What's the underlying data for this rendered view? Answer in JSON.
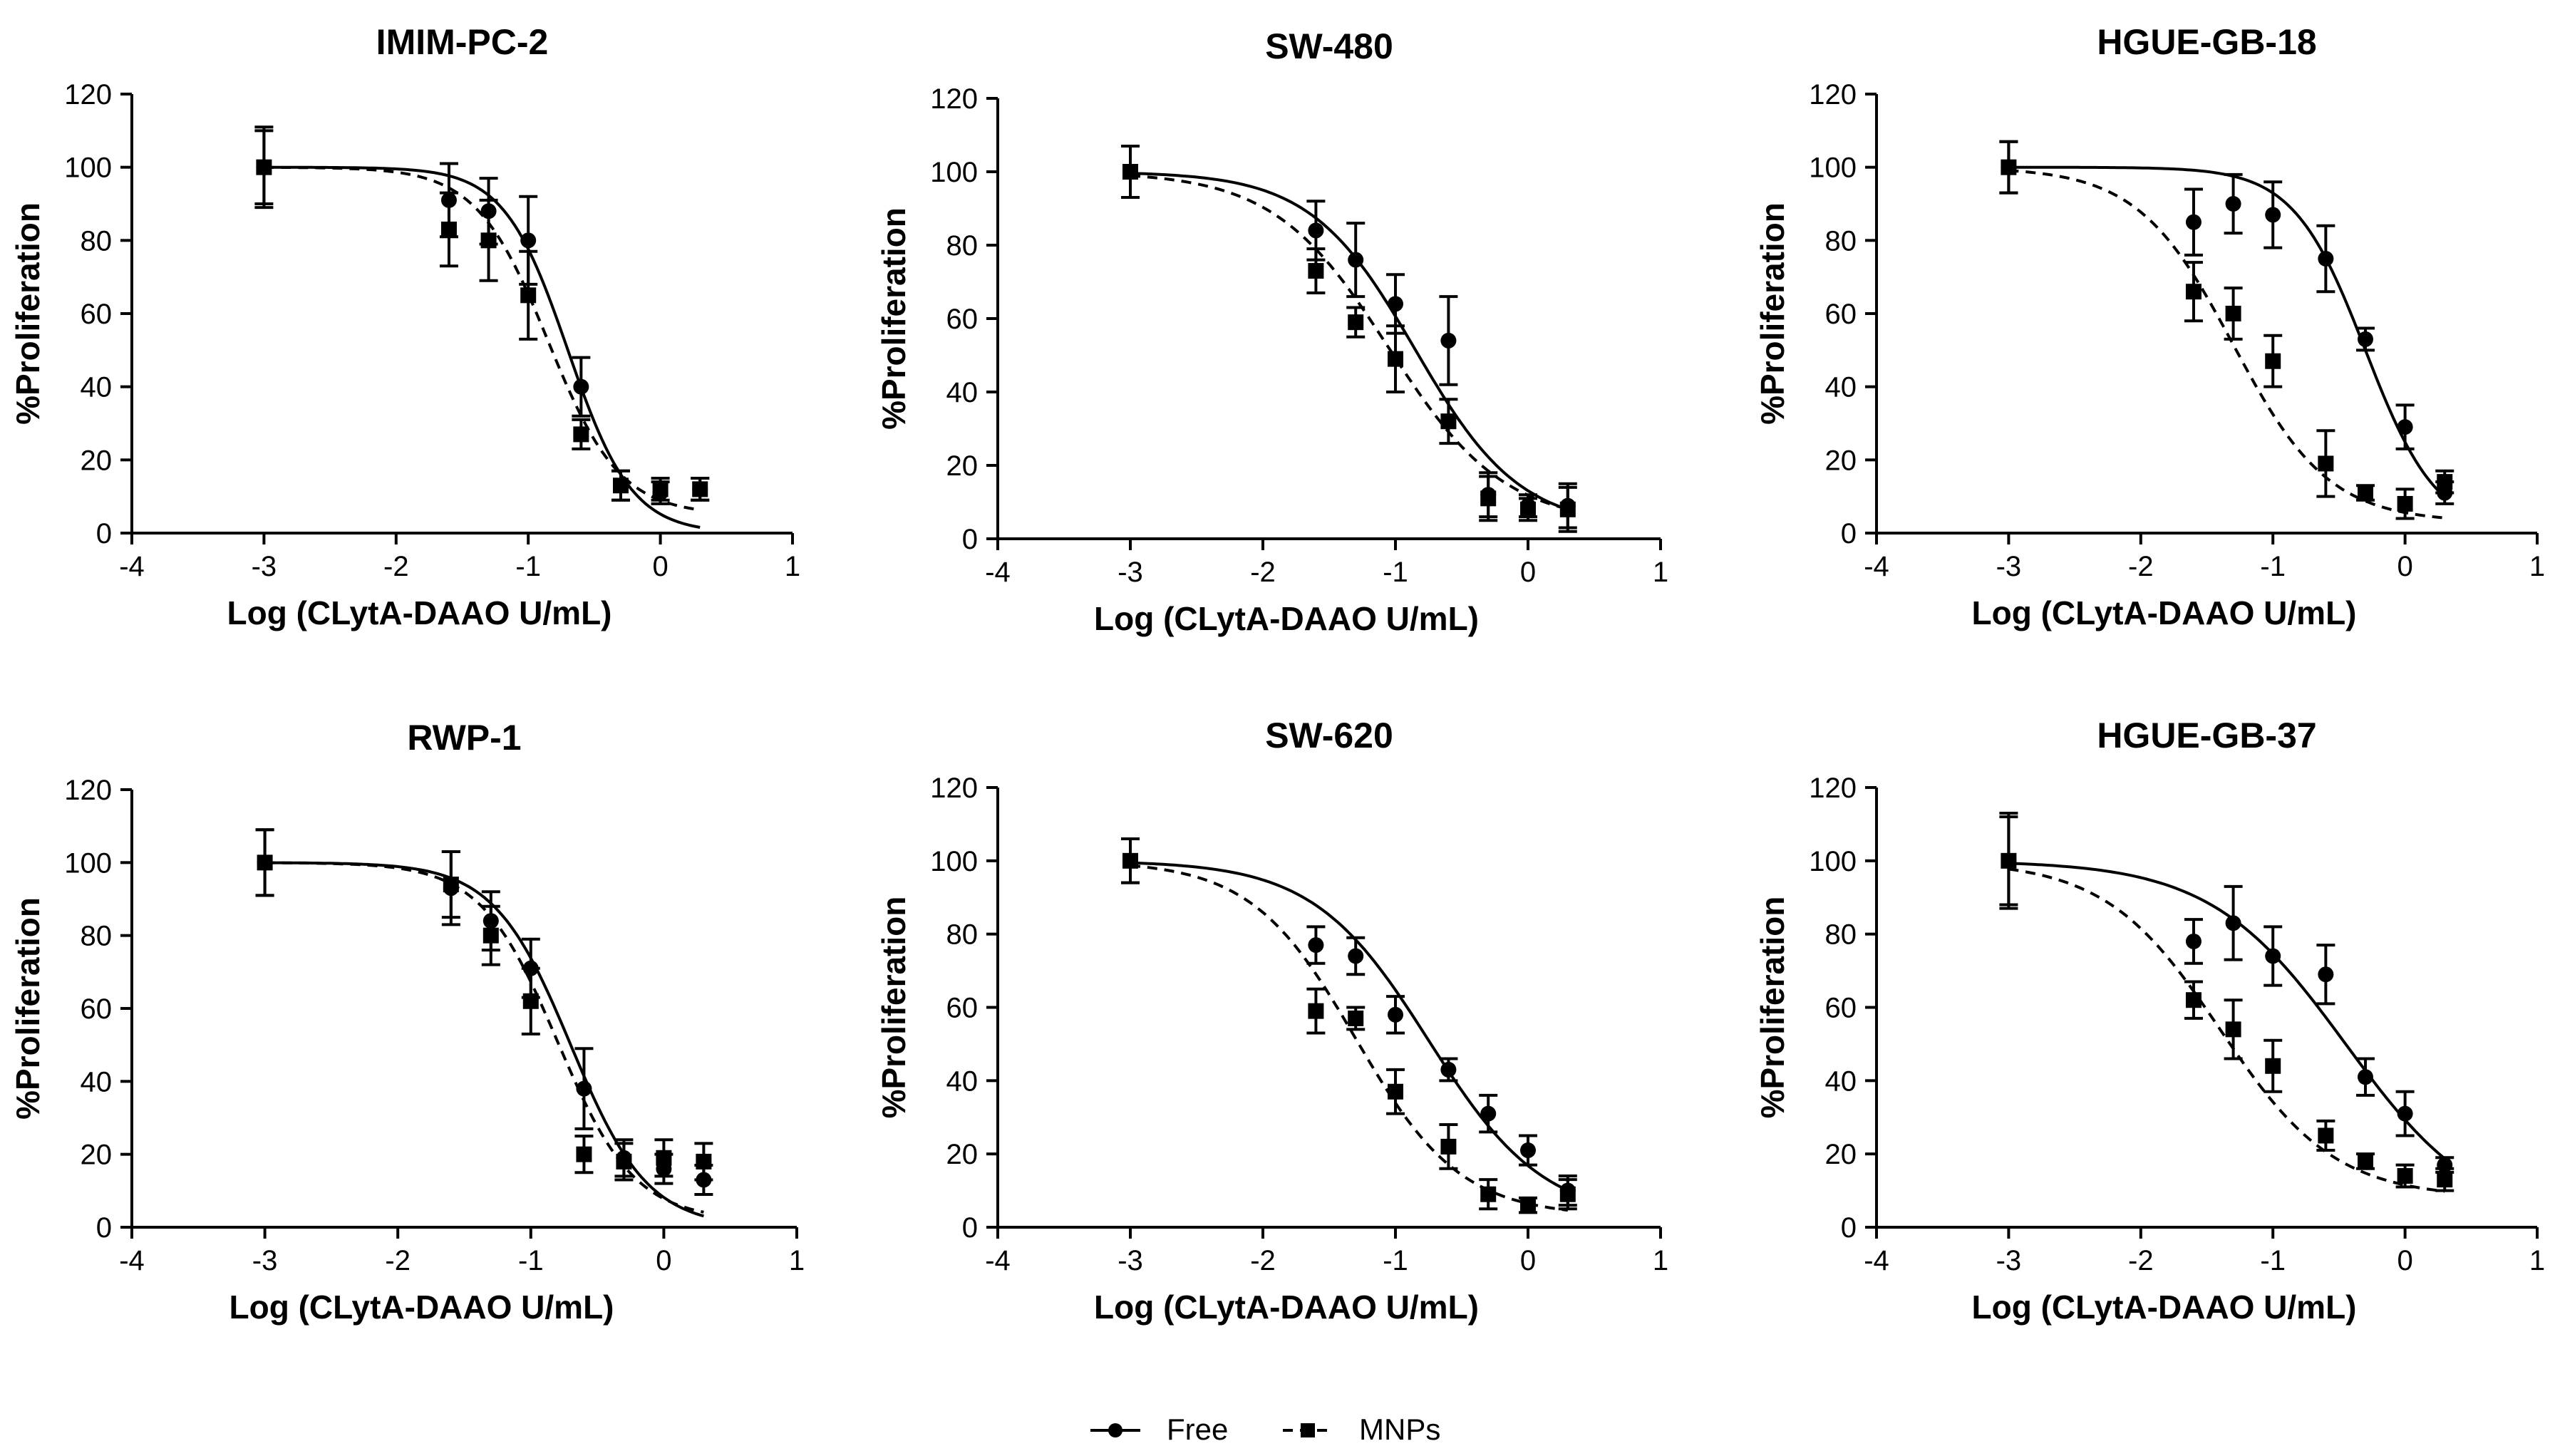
{
  "legend": {
    "free_label": "Free",
    "mnps_label": "MNPs"
  },
  "chart_data": [
    {
      "type": "scatter",
      "title": "IMIM-PC-2",
      "xlabel": "Log (CLytA-DAAO U/mL)",
      "ylabel": "%Proliferation",
      "xlim": [
        -4,
        1
      ],
      "ylim": [
        0,
        120
      ],
      "xticks": [
        -4,
        -3,
        -2,
        -1,
        0,
        1
      ],
      "yticks": [
        0,
        20,
        40,
        60,
        80,
        100,
        120
      ],
      "series": [
        {
          "name": "Free",
          "marker": "circle",
          "line": "solid",
          "x": [
            -3,
            -1.6,
            -1.3,
            -1.0,
            -0.6,
            -0.3,
            0.0,
            0.3
          ],
          "y": [
            100,
            91,
            88,
            80,
            40,
            13,
            11,
            12
          ],
          "err": [
            10,
            10,
            9,
            12,
            8,
            4,
            3,
            3
          ],
          "fit": {
            "top": 100,
            "bottom": 0,
            "logec50": -0.7,
            "hill": 1.8
          }
        },
        {
          "name": "MNPs",
          "marker": "square",
          "line": "dashed",
          "x": [
            -3,
            -1.6,
            -1.3,
            -1.0,
            -0.6,
            -0.3,
            0.0,
            0.3
          ],
          "y": [
            100,
            83,
            80,
            65,
            27,
            13,
            12,
            12
          ],
          "err": [
            11,
            10,
            11,
            12,
            4,
            4,
            3,
            3
          ],
          "fit": {
            "top": 100,
            "bottom": 5,
            "logec50": -0.85,
            "hill": 1.6
          }
        }
      ]
    },
    {
      "type": "scatter",
      "title": "SW-480",
      "xlabel": "Log (CLytA-DAAO U/mL)",
      "ylabel": "%Proliferation",
      "xlim": [
        -4,
        1
      ],
      "ylim": [
        0,
        120
      ],
      "xticks": [
        -4,
        -3,
        -2,
        -1,
        0,
        1
      ],
      "yticks": [
        0,
        20,
        40,
        60,
        80,
        100,
        120
      ],
      "series": [
        {
          "name": "Free",
          "marker": "circle",
          "line": "solid",
          "x": [
            -3,
            -1.6,
            -1.3,
            -1.0,
            -0.6,
            -0.3,
            0.0,
            0.3
          ],
          "y": [
            100,
            84,
            76,
            64,
            54,
            12,
            9,
            9
          ],
          "err": [
            7,
            8,
            10,
            8,
            12,
            6,
            3,
            6
          ],
          "fit": {
            "top": 100,
            "bottom": 3,
            "logec50": -0.85,
            "hill": 1.1
          }
        },
        {
          "name": "MNPs",
          "marker": "square",
          "line": "dashed",
          "x": [
            -3,
            -1.6,
            -1.3,
            -1.0,
            -0.6,
            -0.3,
            0.0,
            0.3
          ],
          "y": [
            100,
            73,
            59,
            49,
            32,
            11,
            8,
            8
          ],
          "err": [
            7,
            6,
            4,
            9,
            6,
            6,
            3,
            6
          ],
          "fit": {
            "top": 100,
            "bottom": 4,
            "logec50": -1.05,
            "hill": 1.0
          }
        }
      ]
    },
    {
      "type": "scatter",
      "title": "HGUE-GB-18",
      "xlabel": "Log (CLytA-DAAO U/mL)",
      "ylabel": "%Proliferation",
      "xlim": [
        -4,
        1
      ],
      "ylim": [
        0,
        120
      ],
      "xticks": [
        -4,
        -3,
        -2,
        -1,
        0,
        1
      ],
      "yticks": [
        0,
        20,
        40,
        60,
        80,
        100,
        120
      ],
      "series": [
        {
          "name": "Free",
          "marker": "circle",
          "line": "solid",
          "x": [
            -3,
            -1.6,
            -1.3,
            -1.0,
            -0.6,
            -0.3,
            0.0,
            0.3
          ],
          "y": [
            100,
            85,
            90,
            87,
            75,
            53,
            29,
            11
          ],
          "err": [
            7,
            9,
            8,
            9,
            9,
            3,
            6,
            3
          ],
          "fit": {
            "top": 100,
            "bottom": 0,
            "logec50": -0.3,
            "hill": 1.6
          }
        },
        {
          "name": "MNPs",
          "marker": "square",
          "line": "dashed",
          "x": [
            -3,
            -1.6,
            -1.3,
            -1.0,
            -0.6,
            -0.3,
            0.0,
            0.3
          ],
          "y": [
            100,
            66,
            60,
            47,
            19,
            11,
            8,
            14
          ],
          "err": [
            7,
            8,
            7,
            7,
            9,
            2,
            4,
            3
          ],
          "fit": {
            "top": 100,
            "bottom": 3,
            "logec50": -1.3,
            "hill": 1.2
          }
        }
      ]
    },
    {
      "type": "scatter",
      "title": "RWP-1",
      "xlabel": "Log (CLytA-DAAO U/mL)",
      "ylabel": "%Proliferation",
      "xlim": [
        -4,
        1
      ],
      "ylim": [
        0,
        120
      ],
      "xticks": [
        -4,
        -3,
        -2,
        -1,
        0,
        1
      ],
      "yticks": [
        0,
        20,
        40,
        60,
        80,
        100,
        120
      ],
      "series": [
        {
          "name": "Free",
          "marker": "circle",
          "line": "solid",
          "x": [
            -3,
            -1.6,
            -1.3,
            -1.0,
            -0.6,
            -0.3,
            0.0,
            0.3
          ],
          "y": [
            100,
            93,
            84,
            71,
            38,
            19,
            16,
            13
          ],
          "err": [
            9,
            10,
            8,
            8,
            11,
            5,
            4,
            4
          ],
          "fit": {
            "top": 100,
            "bottom": 0,
            "logec50": -0.7,
            "hill": 1.5
          }
        },
        {
          "name": "MNPs",
          "marker": "square",
          "line": "dashed",
          "x": [
            -3,
            -1.6,
            -1.3,
            -1.0,
            -0.6,
            -0.3,
            0.0,
            0.3
          ],
          "y": [
            100,
            94,
            80,
            62,
            20,
            18,
            19,
            18
          ],
          "err": [
            9,
            9,
            8,
            9,
            5,
            5,
            5,
            5
          ],
          "fit": {
            "top": 100,
            "bottom": 2,
            "logec50": -0.8,
            "hill": 1.5
          }
        }
      ]
    },
    {
      "type": "scatter",
      "title": "SW-620",
      "xlabel": "Log (CLytA-DAAO U/mL)",
      "ylabel": "%Proliferation",
      "xlim": [
        -4,
        1
      ],
      "ylim": [
        0,
        120
      ],
      "xticks": [
        -4,
        -3,
        -2,
        -1,
        0,
        1
      ],
      "yticks": [
        0,
        20,
        40,
        60,
        80,
        100,
        120
      ],
      "series": [
        {
          "name": "Free",
          "marker": "circle",
          "line": "solid",
          "x": [
            -3,
            -1.6,
            -1.3,
            -1.0,
            -0.6,
            -0.3,
            0.0,
            0.3
          ],
          "y": [
            100,
            77,
            74,
            58,
            43,
            31,
            21,
            10
          ],
          "err": [
            6,
            5,
            5,
            5,
            3,
            5,
            4,
            4
          ],
          "fit": {
            "top": 100,
            "bottom": 2,
            "logec50": -0.75,
            "hill": 1.0
          }
        },
        {
          "name": "MNPs",
          "marker": "square",
          "line": "dashed",
          "x": [
            -3,
            -1.6,
            -1.3,
            -1.0,
            -0.6,
            -0.3,
            0.0,
            0.3
          ],
          "y": [
            100,
            59,
            57,
            37,
            22,
            9,
            6,
            9
          ],
          "err": [
            6,
            6,
            3,
            6,
            6,
            4,
            2,
            4
          ],
          "fit": {
            "top": 100,
            "bottom": 3,
            "logec50": -1.3,
            "hill": 1.1
          }
        }
      ]
    },
    {
      "type": "scatter",
      "title": "HGUE-GB-37",
      "xlabel": "Log (CLytA-DAAO U/mL)",
      "ylabel": "%Proliferation",
      "xlim": [
        -4,
        1
      ],
      "ylim": [
        0,
        120
      ],
      "xticks": [
        -4,
        -3,
        -2,
        -1,
        0,
        1
      ],
      "yticks": [
        0,
        20,
        40,
        60,
        80,
        100,
        120
      ],
      "series": [
        {
          "name": "Free",
          "marker": "circle",
          "line": "solid",
          "x": [
            -3,
            -1.6,
            -1.3,
            -1.0,
            -0.6,
            -0.3,
            0.0,
            0.3
          ],
          "y": [
            100,
            78,
            83,
            74,
            69,
            41,
            31,
            17
          ],
          "err": [
            13,
            6,
            10,
            8,
            8,
            5,
            6,
            2
          ],
          "fit": {
            "top": 100,
            "bottom": 0,
            "logec50": -0.45,
            "hill": 0.85
          }
        },
        {
          "name": "MNPs",
          "marker": "square",
          "line": "dashed",
          "x": [
            -3,
            -1.6,
            -1.3,
            -1.0,
            -0.6,
            -0.3,
            0.0,
            0.3
          ],
          "y": [
            100,
            62,
            54,
            44,
            25,
            18,
            14,
            13
          ],
          "err": [
            12,
            5,
            8,
            7,
            4,
            2,
            3,
            3
          ],
          "fit": {
            "top": 100,
            "bottom": 8,
            "logec50": -1.4,
            "hill": 1.0
          }
        }
      ]
    }
  ]
}
